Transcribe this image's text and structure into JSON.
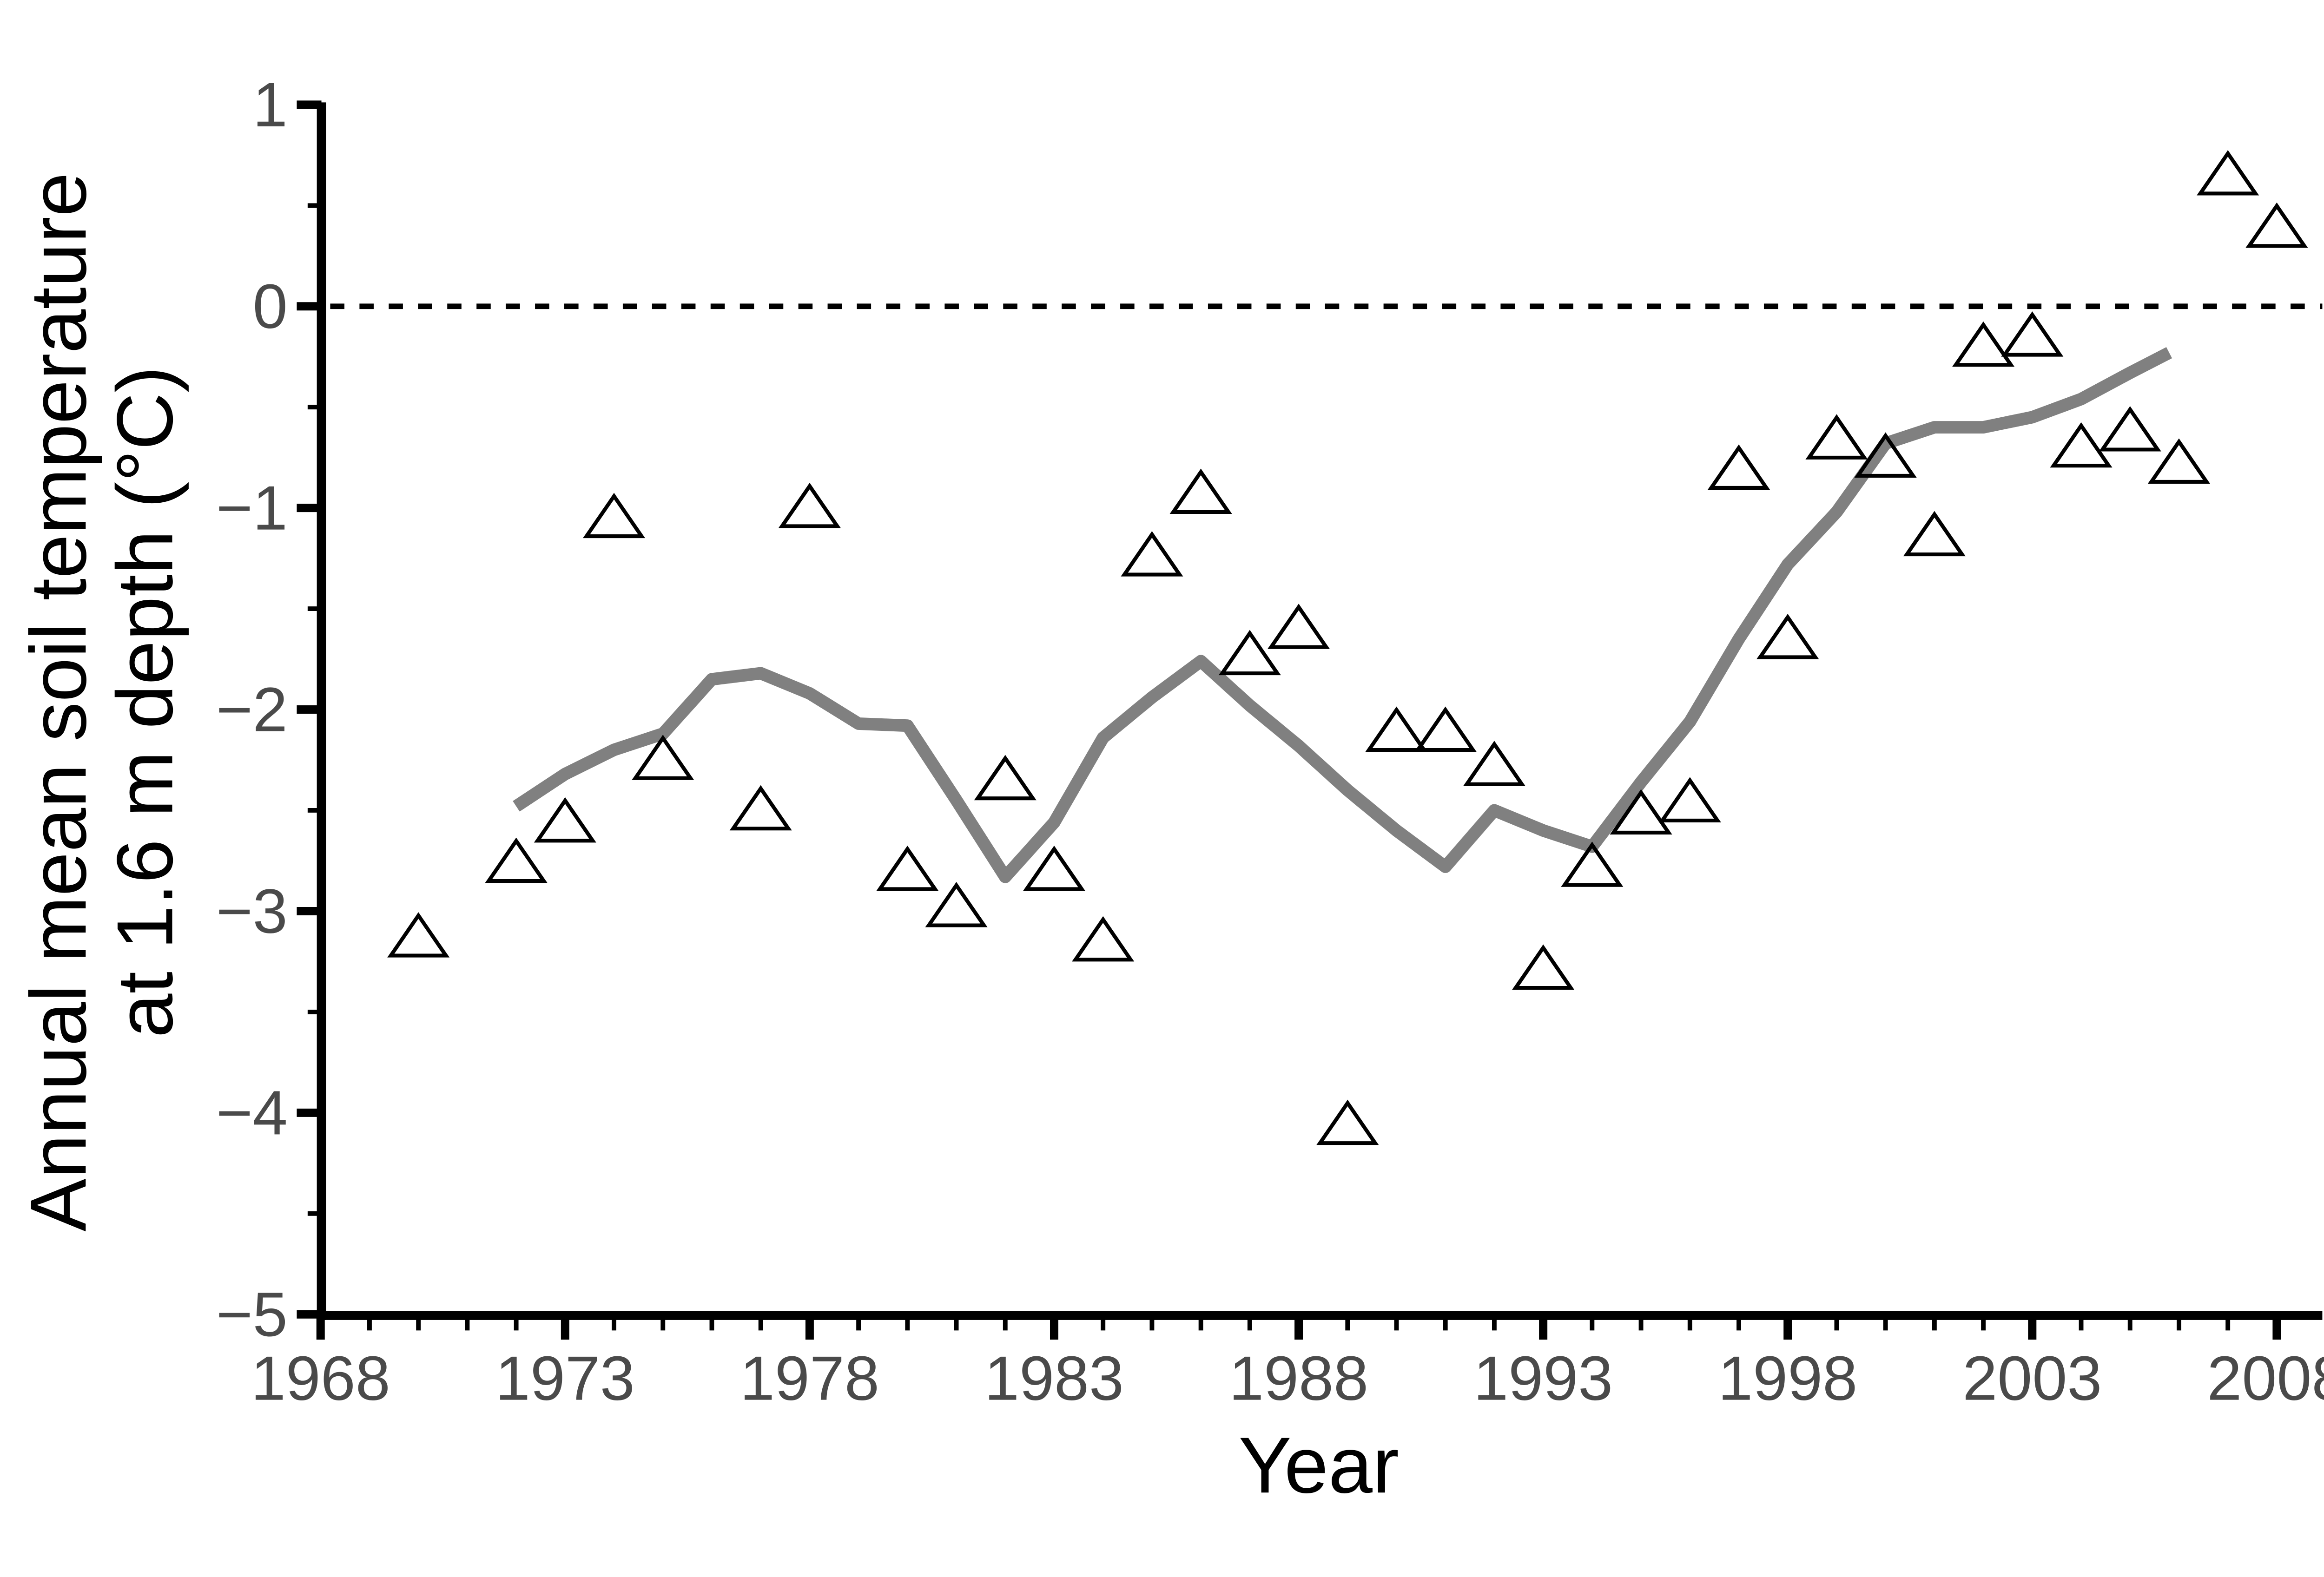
{
  "figure": {
    "background": "#ffffff"
  },
  "chart_data": {
    "type": "scatter",
    "title": "",
    "xlabel": "Year",
    "ylabel_lines": [
      "Annual mean soil temperature",
      "at 1.6 m depth (°C)"
    ],
    "xlim": [
      1967.9,
      2009.0
    ],
    "ylim": [
      -5,
      1
    ],
    "x_major_ticks": [
      1968,
      1973,
      1978,
      1983,
      1988,
      1993,
      1998,
      2003,
      2008
    ],
    "x_minor_tick_step": 1,
    "y_major_ticks": [
      1,
      0,
      -1,
      -2,
      -3,
      -4,
      -5
    ],
    "y_minor_tick_step": 0.5,
    "zero_reference_line": 0,
    "grid": false,
    "legend_position": "none",
    "colors": {
      "marker": "#000000",
      "trend_line": "#808080",
      "tick_label": "#4a4a4a",
      "axis": "#000000",
      "axis_title": "#000000",
      "zero_line": "#000000"
    },
    "series": [
      {
        "name": "annual mean soil temperature",
        "type": "scatter",
        "marker": "triangle-up-open",
        "points": [
          [
            1970,
            -3.15
          ],
          [
            1972,
            -2.78
          ],
          [
            1973,
            -2.58
          ],
          [
            1974,
            -1.07
          ],
          [
            1975,
            -2.27
          ],
          [
            1977,
            -2.52
          ],
          [
            1978,
            -1.02
          ],
          [
            1980,
            -2.82
          ],
          [
            1981,
            -3.0
          ],
          [
            1982,
            -2.37
          ],
          [
            1983,
            -2.82
          ],
          [
            1984,
            -3.17
          ],
          [
            1985,
            -1.26
          ],
          [
            1986,
            -0.95
          ],
          [
            1987,
            -1.75
          ],
          [
            1988,
            -1.62
          ],
          [
            1989,
            -4.08
          ],
          [
            1990,
            -2.13
          ],
          [
            1991,
            -2.13
          ],
          [
            1992,
            -2.3
          ],
          [
            1993,
            -3.31
          ],
          [
            1994,
            -2.8
          ],
          [
            1995,
            -2.54
          ],
          [
            1996,
            -2.48
          ],
          [
            1997,
            -0.83
          ],
          [
            1998,
            -1.67
          ],
          [
            1999,
            -0.68
          ],
          [
            2000,
            -0.77
          ],
          [
            2001,
            -1.16
          ],
          [
            2002,
            -0.22
          ],
          [
            2003,
            -0.17
          ],
          [
            2004,
            -0.72
          ],
          [
            2005,
            -0.64
          ],
          [
            2006,
            -0.8
          ],
          [
            2007,
            0.63
          ],
          [
            2008,
            0.37
          ]
        ]
      },
      {
        "name": "smoothed trend",
        "type": "line",
        "points": [
          [
            1972,
            -2.48
          ],
          [
            1973,
            -2.32
          ],
          [
            1974,
            -2.2
          ],
          [
            1975,
            -2.12
          ],
          [
            1976,
            -1.85
          ],
          [
            1977,
            -1.82
          ],
          [
            1978,
            -1.92
          ],
          [
            1979,
            -2.07
          ],
          [
            1980,
            -2.08
          ],
          [
            1981,
            -2.45
          ],
          [
            1982,
            -2.83
          ],
          [
            1983,
            -2.56
          ],
          [
            1984,
            -2.14
          ],
          [
            1985,
            -1.94
          ],
          [
            1986,
            -1.76
          ],
          [
            1987,
            -1.98
          ],
          [
            1988,
            -2.18
          ],
          [
            1989,
            -2.4
          ],
          [
            1990,
            -2.6
          ],
          [
            1991,
            -2.78
          ],
          [
            1992,
            -2.5
          ],
          [
            1993,
            -2.6
          ],
          [
            1994,
            -2.68
          ],
          [
            1995,
            -2.36
          ],
          [
            1996,
            -2.06
          ],
          [
            1997,
            -1.65
          ],
          [
            1998,
            -1.28
          ],
          [
            1999,
            -1.02
          ],
          [
            2000,
            -0.68
          ],
          [
            2001,
            -0.6
          ],
          [
            2002,
            -0.6
          ],
          [
            2003,
            -0.55
          ],
          [
            2004,
            -0.46
          ],
          [
            2005,
            -0.33
          ],
          [
            2005.8,
            -0.23
          ]
        ]
      }
    ]
  }
}
